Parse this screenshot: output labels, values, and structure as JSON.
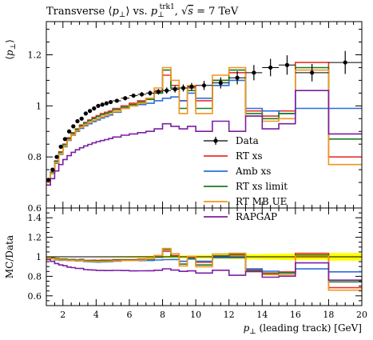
{
  "title": {
    "prefix": "Transverse ⟨",
    "pperp": "p",
    "sub_perp": "⊥",
    "mid": "⟩ vs. ",
    "p2": "p",
    "sub2": "⊥",
    "sup2": "trk1",
    "sep": ", √",
    "s": "s",
    "eq": " = 7 TeV"
  },
  "chart_data": [
    {
      "type": "line",
      "role": "main",
      "ylabel": "⟨p⊥⟩",
      "ylabel_parts": {
        "open": "⟨",
        "p": "p",
        "sub": "⊥",
        "close": "⟩"
      },
      "xlim": [
        1,
        20
      ],
      "ylim": [
        0.6,
        1.33
      ],
      "yticks": [
        0.6,
        0.8,
        1.0,
        1.2
      ],
      "ytick_labels": [
        "0.6",
        "0.8",
        "1",
        "1.2"
      ],
      "bin_edges": [
        1.0,
        1.25,
        1.5,
        1.75,
        2.0,
        2.25,
        2.5,
        2.75,
        3.0,
        3.25,
        3.5,
        3.75,
        4.0,
        4.25,
        4.5,
        4.75,
        5.0,
        5.5,
        6.0,
        6.5,
        7.0,
        7.5,
        8.0,
        8.5,
        9.0,
        9.5,
        10.0,
        11.0,
        12.0,
        13.0,
        14.0,
        15.0,
        16.0,
        18.0,
        20.0
      ],
      "data": {
        "name": "Data",
        "x": [
          1.125,
          1.375,
          1.625,
          1.875,
          2.125,
          2.375,
          2.625,
          2.875,
          3.125,
          3.375,
          3.625,
          3.875,
          4.125,
          4.375,
          4.625,
          4.875,
          5.25,
          5.75,
          6.25,
          6.75,
          7.25,
          7.75,
          8.25,
          8.75,
          9.25,
          9.75,
          10.5,
          11.5,
          12.5,
          13.5,
          14.5,
          15.5,
          17.0,
          19.0
        ],
        "y": [
          0.71,
          0.75,
          0.8,
          0.84,
          0.87,
          0.9,
          0.92,
          0.94,
          0.95,
          0.97,
          0.98,
          0.99,
          1.0,
          1.005,
          1.01,
          1.015,
          1.02,
          1.03,
          1.04,
          1.045,
          1.05,
          1.055,
          1.06,
          1.065,
          1.07,
          1.075,
          1.08,
          1.09,
          1.11,
          1.13,
          1.15,
          1.16,
          1.13,
          1.17
        ],
        "err": [
          0.004,
          0.004,
          0.004,
          0.004,
          0.004,
          0.004,
          0.004,
          0.004,
          0.004,
          0.004,
          0.004,
          0.004,
          0.005,
          0.005,
          0.005,
          0.005,
          0.006,
          0.007,
          0.008,
          0.009,
          0.01,
          0.011,
          0.012,
          0.013,
          0.014,
          0.015,
          0.018,
          0.022,
          0.026,
          0.03,
          0.034,
          0.038,
          0.034,
          0.045
        ]
      },
      "series": [
        {
          "name": "RT xs",
          "color": "#e8322a",
          "values": [
            0.705,
            0.74,
            0.785,
            0.82,
            0.85,
            0.875,
            0.895,
            0.91,
            0.925,
            0.935,
            0.945,
            0.955,
            0.962,
            0.97,
            0.975,
            0.98,
            0.99,
            1.0,
            1.01,
            1.02,
            1.03,
            1.06,
            1.12,
            1.08,
            1.02,
            1.07,
            1.02,
            1.1,
            1.13,
            0.98,
            0.96,
            0.98,
            1.17,
            0.8
          ]
        },
        {
          "name": "Amb xs",
          "color": "#2a6fdb",
          "values": [
            0.7,
            0.735,
            0.775,
            0.81,
            0.84,
            0.865,
            0.885,
            0.9,
            0.912,
            0.922,
            0.93,
            0.938,
            0.945,
            0.952,
            0.958,
            0.964,
            0.975,
            0.99,
            1.0,
            1.005,
            1.01,
            1.02,
            1.03,
            1.035,
            1.02,
            1.05,
            1.03,
            1.08,
            1.1,
            0.99,
            0.98,
            0.97,
            0.99,
            0.99
          ]
        },
        {
          "name": "RT xs limit",
          "color": "#1d7a1d",
          "values": [
            0.705,
            0.74,
            0.783,
            0.818,
            0.848,
            0.872,
            0.892,
            0.908,
            0.922,
            0.932,
            0.942,
            0.95,
            0.958,
            0.965,
            0.97,
            0.975,
            0.985,
            0.995,
            1.005,
            1.015,
            1.025,
            1.05,
            1.14,
            1.07,
            0.99,
            1.06,
            0.99,
            1.1,
            1.14,
            0.97,
            0.95,
            0.97,
            1.15,
            0.87
          ]
        },
        {
          "name": "RT MB UE",
          "color": "#f0961e",
          "values": [
            0.7,
            0.736,
            0.778,
            0.812,
            0.842,
            0.867,
            0.887,
            0.903,
            0.916,
            0.926,
            0.935,
            0.943,
            0.95,
            0.957,
            0.963,
            0.968,
            0.978,
            0.99,
            1.0,
            1.01,
            1.03,
            1.07,
            1.15,
            1.1,
            0.97,
            1.08,
            0.97,
            1.12,
            1.15,
            0.96,
            0.94,
            0.95,
            1.14,
            0.77
          ]
        },
        {
          "name": "RAPGAP",
          "color": "#7b1fa2",
          "values": [
            0.69,
            0.715,
            0.745,
            0.77,
            0.79,
            0.805,
            0.818,
            0.828,
            0.836,
            0.843,
            0.849,
            0.855,
            0.86,
            0.864,
            0.868,
            0.872,
            0.878,
            0.885,
            0.89,
            0.895,
            0.9,
            0.91,
            0.93,
            0.92,
            0.91,
            0.92,
            0.9,
            0.94,
            0.9,
            0.96,
            0.91,
            0.93,
            1.06,
            0.89
          ]
        }
      ],
      "legend_placement": "center-right"
    },
    {
      "type": "line",
      "role": "ratio",
      "ylabel": "MC/Data",
      "xlabel_parts": {
        "p": "p",
        "sub": "⊥",
        "rest": " (leading track) [GeV]"
      },
      "xlim": [
        1,
        20
      ],
      "ylim": [
        0.5,
        1.5
      ],
      "yticks": [
        0.6,
        0.8,
        1.0,
        1.2,
        1.4
      ],
      "ytick_labels": [
        "0.6",
        "0.8",
        "1",
        "1.2",
        "1.4"
      ],
      "xticks": [
        2,
        4,
        6,
        8,
        10,
        12,
        14,
        16,
        18,
        20
      ],
      "xtick_labels": [
        "2",
        "4",
        "6",
        "8",
        "10",
        "12",
        "14",
        "16",
        "18",
        "20"
      ],
      "band_color": "#ffff00"
    }
  ]
}
